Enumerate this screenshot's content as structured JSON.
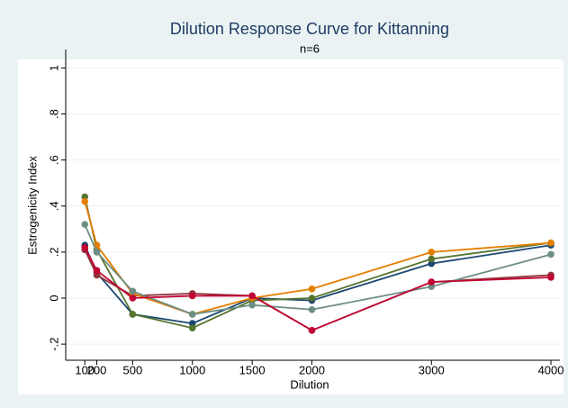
{
  "chart_data": {
    "type": "line",
    "title": "Dilution Response Curve for Kittanning",
    "subtitle": "n=6",
    "xlabel": "Dilution",
    "ylabel": "Estrogenicity Index",
    "x": [
      100,
      200,
      500,
      1000,
      1500,
      2000,
      3000,
      4000
    ],
    "xlim": [
      -60,
      4075
    ],
    "xticks": [
      100,
      200,
      500,
      1000,
      1500,
      2000,
      3000,
      4000
    ],
    "ylim": [
      -0.27,
      1.08
    ],
    "yticks": [
      {
        "value": -0.2,
        "label": "-.2"
      },
      0,
      {
        "value": 0.2,
        "label": ".2"
      },
      {
        "value": 0.4,
        "label": ".4"
      },
      {
        "value": 0.6,
        "label": ".6"
      },
      {
        "value": 0.8,
        "label": ".8"
      },
      1
    ],
    "grid": true,
    "series": [
      {
        "color": "#1a476f",
        "values": [
          0.23,
          0.11,
          -0.07,
          -0.11,
          0.0,
          -0.01,
          0.15,
          0.23
        ]
      },
      {
        "color": "#90353b",
        "values": [
          0.21,
          0.1,
          0.01,
          0.02,
          0.01,
          -0.14,
          0.07,
          0.1
        ]
      },
      {
        "color": "#55752f",
        "values": [
          0.44,
          0.21,
          -0.07,
          -0.13,
          -0.01,
          0.0,
          0.17,
          0.24
        ]
      },
      {
        "color": "#e37e00",
        "values": [
          0.42,
          0.23,
          0.02,
          -0.07,
          0.0,
          0.04,
          0.2,
          0.24
        ]
      },
      {
        "color": "#6e8e84",
        "values": [
          0.32,
          0.2,
          0.03,
          -0.07,
          -0.03,
          -0.05,
          0.05,
          0.19
        ]
      },
      {
        "color": "#c10534",
        "values": [
          0.22,
          0.12,
          0.0,
          0.01,
          0.01,
          -0.14,
          0.07,
          0.09
        ]
      }
    ]
  }
}
